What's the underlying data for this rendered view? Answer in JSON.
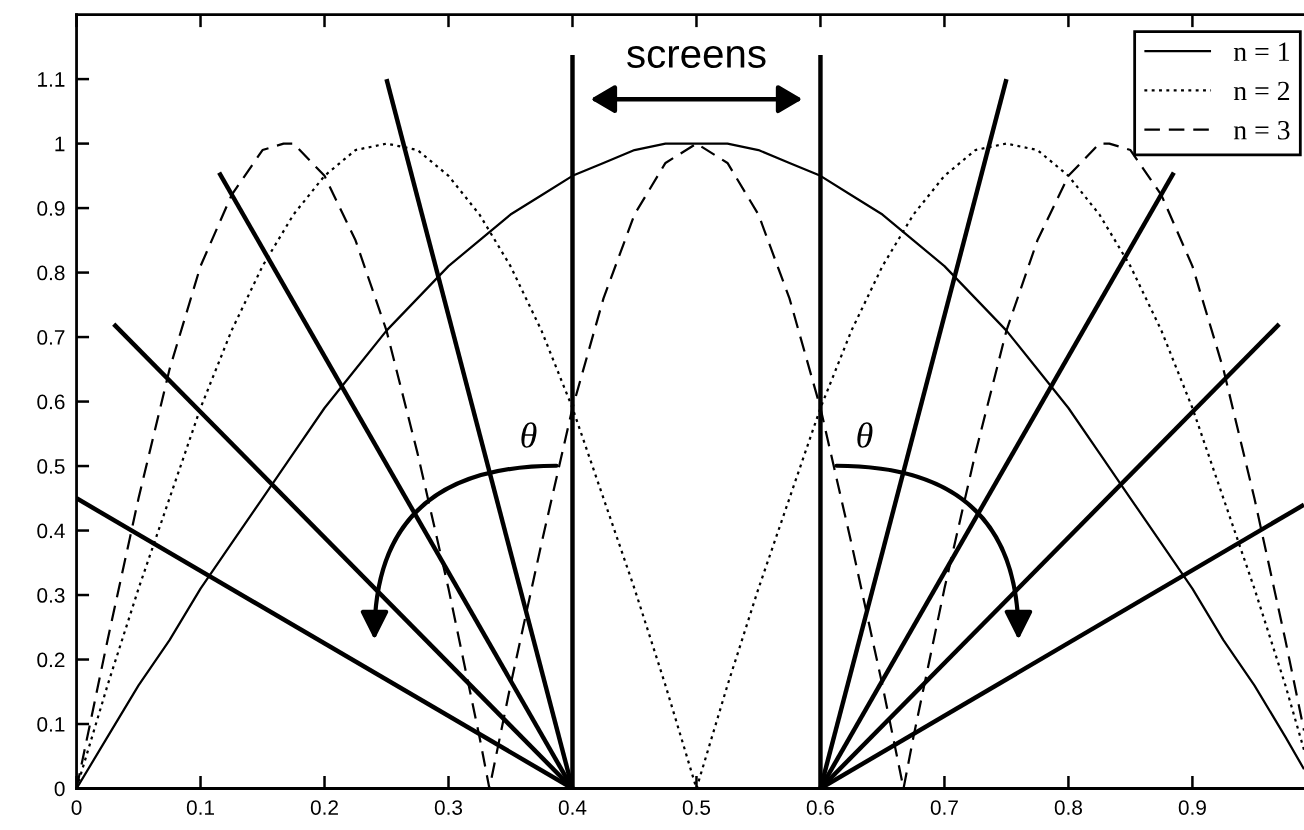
{
  "chart_data": {
    "type": "line",
    "xlim": [
      0,
      0.99
    ],
    "ylim": [
      0,
      1.2
    ],
    "xticks": [
      0,
      0.1,
      0.2,
      0.3,
      0.4,
      0.5,
      0.6,
      0.7,
      0.8,
      0.9
    ],
    "yticks": [
      0,
      0.1,
      0.2,
      0.3,
      0.4,
      0.5,
      0.6,
      0.7,
      0.8,
      0.9,
      1,
      1.1
    ],
    "legend": "top right",
    "series": [
      {
        "name": "n = 1",
        "color": "#000000",
        "line_style": "solid",
        "x": [
          0,
          0.025,
          0.05,
          0.075,
          0.1,
          0.125,
          0.15,
          0.175,
          0.2,
          0.225,
          0.25,
          0.275,
          0.3,
          0.325,
          0.35,
          0.375,
          0.4,
          0.425,
          0.45,
          0.475,
          0.5,
          0.525,
          0.55,
          0.575,
          0.6,
          0.625,
          0.65,
          0.675,
          0.7,
          0.725,
          0.75,
          0.775,
          0.8,
          0.825,
          0.85,
          0.875,
          0.9,
          0.925,
          0.95,
          0.975,
          0.99
        ],
        "values": [
          0,
          0.08,
          0.16,
          0.23,
          0.31,
          0.38,
          0.45,
          0.52,
          0.59,
          0.65,
          0.71,
          0.76,
          0.81,
          0.85,
          0.89,
          0.92,
          0.95,
          0.97,
          0.99,
          1,
          1,
          1,
          0.99,
          0.97,
          0.95,
          0.92,
          0.89,
          0.85,
          0.81,
          0.76,
          0.71,
          0.65,
          0.59,
          0.52,
          0.45,
          0.38,
          0.31,
          0.23,
          0.16,
          0.08,
          0.03
        ]
      },
      {
        "name": "n = 2",
        "color": "#000000",
        "line_style": "dotted",
        "x": [
          0,
          0.025,
          0.05,
          0.075,
          0.1,
          0.125,
          0.15,
          0.175,
          0.2,
          0.225,
          0.25,
          0.275,
          0.3,
          0.325,
          0.35,
          0.375,
          0.4,
          0.425,
          0.45,
          0.475,
          0.5,
          0.525,
          0.55,
          0.575,
          0.6,
          0.625,
          0.65,
          0.675,
          0.7,
          0.725,
          0.75,
          0.775,
          0.8,
          0.825,
          0.85,
          0.875,
          0.9,
          0.925,
          0.95,
          0.975,
          0.99
        ],
        "values": [
          0,
          0.16,
          0.31,
          0.45,
          0.59,
          0.71,
          0.81,
          0.89,
          0.95,
          0.99,
          1,
          0.99,
          0.95,
          0.89,
          0.81,
          0.71,
          0.59,
          0.45,
          0.31,
          0.16,
          0,
          0.16,
          0.31,
          0.45,
          0.59,
          0.71,
          0.81,
          0.89,
          0.95,
          0.99,
          1,
          0.99,
          0.95,
          0.89,
          0.81,
          0.71,
          0.59,
          0.45,
          0.31,
          0.16,
          0.06
        ]
      },
      {
        "name": "n = 3",
        "color": "#000000",
        "line_style": "dashed",
        "x": [
          0,
          0.025,
          0.05,
          0.075,
          0.1,
          0.125,
          0.15,
          0.167,
          0.175,
          0.2,
          0.225,
          0.25,
          0.275,
          0.3,
          0.325,
          0.333,
          0.35,
          0.375,
          0.4,
          0.425,
          0.45,
          0.475,
          0.5,
          0.525,
          0.55,
          0.575,
          0.6,
          0.625,
          0.65,
          0.667,
          0.675,
          0.7,
          0.725,
          0.75,
          0.775,
          0.8,
          0.825,
          0.833,
          0.85,
          0.875,
          0.9,
          0.925,
          0.95,
          0.975,
          0.99
        ],
        "values": [
          0,
          0.23,
          0.45,
          0.65,
          0.81,
          0.92,
          0.99,
          1,
          1,
          0.95,
          0.85,
          0.71,
          0.52,
          0.31,
          0.08,
          0,
          0.16,
          0.38,
          0.59,
          0.76,
          0.89,
          0.97,
          1,
          0.97,
          0.89,
          0.76,
          0.59,
          0.38,
          0.16,
          0,
          0.08,
          0.31,
          0.52,
          0.71,
          0.85,
          0.95,
          1,
          1,
          0.99,
          0.92,
          0.81,
          0.65,
          0.45,
          0.23,
          0.09
        ]
      },
      {
        "color": "#000000",
        "x": [
          0.4,
          0
        ],
        "values": [
          0,
          0.45
        ]
      },
      {
        "color": "#000000",
        "x": [
          0.4,
          0.03
        ],
        "values": [
          0,
          0.72
        ]
      },
      {
        "color": "#000000",
        "x": [
          0.4,
          0.115
        ],
        "values": [
          0,
          0.955
        ]
      },
      {
        "color": "#000000",
        "x": [
          0.4,
          0.25
        ],
        "values": [
          0,
          1.1
        ]
      },
      {
        "color": "#000000",
        "x": [
          0.6,
          0.75
        ],
        "values": [
          0,
          1.1
        ]
      },
      {
        "color": "#000000",
        "x": [
          0.6,
          0.885
        ],
        "values": [
          0,
          0.955
        ]
      },
      {
        "color": "#000000",
        "x": [
          0.6,
          0.97
        ],
        "values": [
          0,
          0.72
        ]
      },
      {
        "color": "#000000",
        "x": [
          0.6,
          0.99
        ],
        "values": [
          0,
          0.44
        ]
      }
    ],
    "ref_lines": [
      {
        "axis": "x",
        "value": 0.4,
        "color": "#000000",
        "line_style": "solid"
      },
      {
        "axis": "x",
        "value": 0.6,
        "color": "#000000",
        "line_style": "solid"
      }
    ],
    "annotations": [
      "screens",
      "θ",
      "θ"
    ]
  }
}
